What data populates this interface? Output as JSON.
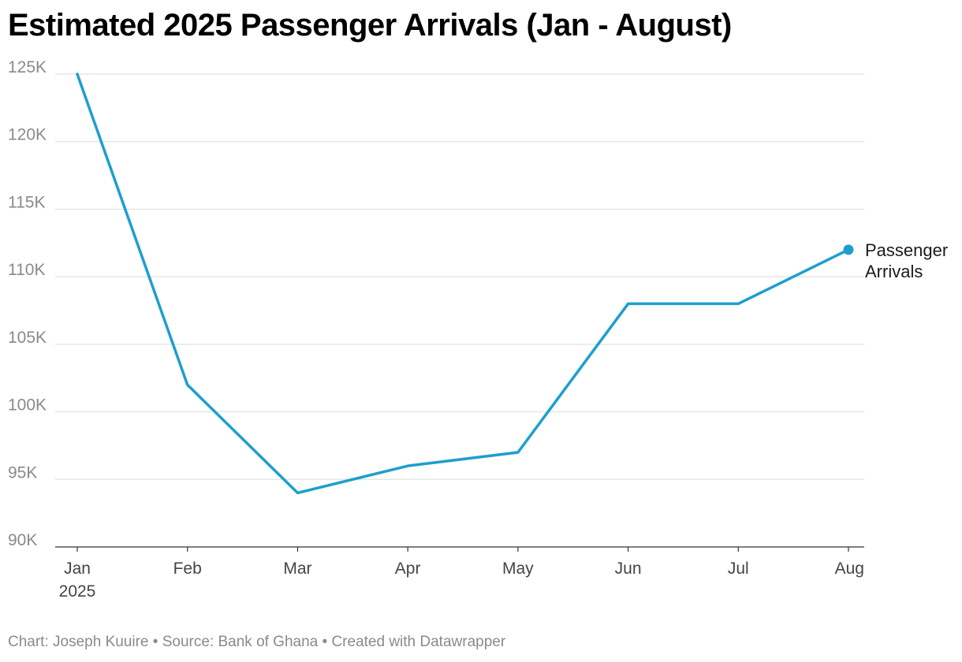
{
  "title": "Estimated 2025 Passenger Arrivals (Jan - August)",
  "footer": {
    "chart_by": "Chart: Joseph Kuuire",
    "separator": " • ",
    "source": "Source: Bank of Ghana",
    "created_with": "Created with Datawrapper"
  },
  "chart_data": {
    "type": "line",
    "title": "Estimated 2025 Passenger Arrivals (Jan - August)",
    "categories": [
      "Jan",
      "Feb",
      "Mar",
      "Apr",
      "May",
      "Jun",
      "Jul",
      "Aug"
    ],
    "x_year_label": "2025",
    "series": [
      {
        "name": "Passenger Arrivals",
        "label_lines": [
          "Passenger",
          "Arrivals"
        ],
        "color": "#1d9fce",
        "values": [
          125000,
          102000,
          94000,
          96000,
          97000,
          108000,
          108000,
          112000
        ]
      }
    ],
    "y_ticks": [
      90000,
      95000,
      100000,
      105000,
      110000,
      115000,
      120000,
      125000
    ],
    "y_tick_labels": [
      "90K",
      "95K",
      "100K",
      "105K",
      "110K",
      "115K",
      "120K",
      "125K"
    ],
    "ylim": [
      90000,
      125000
    ],
    "xlabel": "",
    "ylabel": "",
    "grid": true,
    "legend": "direct-label-end"
  }
}
